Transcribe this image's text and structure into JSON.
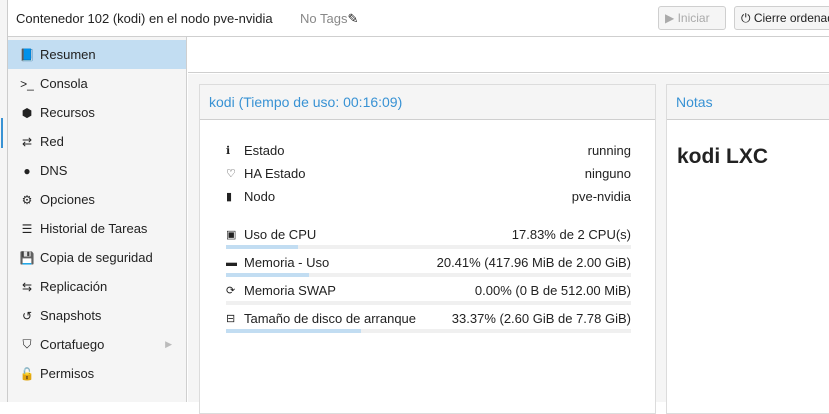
{
  "header": {
    "title": "Contenedor 102 (kodi) en el nodo pve-nvidia",
    "tags": "No Tags",
    "start_label": "Iniciar",
    "shutdown_label": "Cierre ordenado"
  },
  "sidebar": {
    "items": [
      {
        "label": "Resumen",
        "icon": "book-icon",
        "glyph": "📘"
      },
      {
        "label": "Consola",
        "icon": "terminal-icon",
        "glyph": ">_"
      },
      {
        "label": "Recursos",
        "icon": "cube-icon",
        "glyph": "⬢"
      },
      {
        "label": "Red",
        "icon": "exchange-icon",
        "glyph": "⇄"
      },
      {
        "label": "DNS",
        "icon": "globe-icon",
        "glyph": "●"
      },
      {
        "label": "Opciones",
        "icon": "gear-icon",
        "glyph": "⚙"
      },
      {
        "label": "Historial de Tareas",
        "icon": "list-icon",
        "glyph": "☰"
      },
      {
        "label": "Copia de seguridad",
        "icon": "floppy-icon",
        "glyph": "💾"
      },
      {
        "label": "Replicación",
        "icon": "retweet-icon",
        "glyph": "⇆"
      },
      {
        "label": "Snapshots",
        "icon": "history-icon",
        "glyph": "↺"
      },
      {
        "label": "Cortafuego",
        "icon": "shield-icon",
        "glyph": "⛉"
      },
      {
        "label": "Permisos",
        "icon": "unlock-icon",
        "glyph": "🔓"
      }
    ]
  },
  "status": {
    "title": "kodi (Tiempo de uso: 00:16:09)",
    "info": [
      {
        "label": "Estado",
        "value": "running",
        "glyph": "ℹ"
      },
      {
        "label": "HA Estado",
        "value": "ninguno",
        "glyph": "♡"
      },
      {
        "label": "Nodo",
        "value": "pve-nvidia",
        "glyph": "▮"
      }
    ],
    "usage": [
      {
        "label": "Uso de CPU",
        "value": "17.83% de 2 CPU(s)",
        "percent": 17.83,
        "glyph": "▣"
      },
      {
        "label": "Memoria - Uso",
        "value": "20.41% (417.96 MiB de 2.00 GiB)",
        "percent": 20.41,
        "glyph": "▬"
      },
      {
        "label": "Memoria SWAP",
        "value": "0.00% (0 B de 512.00 MiB)",
        "percent": 0,
        "glyph": "⟳"
      },
      {
        "label": "Tamaño de disco de arranque",
        "value": "33.37% (2.60 GiB de 7.78 GiB)",
        "percent": 33.37,
        "glyph": "⊟"
      }
    ]
  },
  "notes": {
    "title": "Notas",
    "content": "kodi LXC"
  },
  "colors": {
    "accent": "#3892d4",
    "selected": "#c2ddf2"
  }
}
